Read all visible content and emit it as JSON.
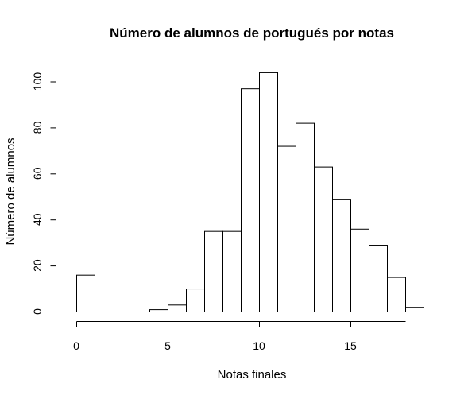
{
  "chart_data": {
    "type": "bar",
    "subtype": "histogram",
    "title": "Número de alumnos de portugués por notas",
    "xlabel": "Notas finales",
    "ylabel": "Número de alumnos",
    "bin_edges": [
      0,
      1,
      2,
      3,
      4,
      5,
      6,
      7,
      8,
      9,
      10,
      11,
      12,
      13,
      14,
      15,
      16,
      17,
      18,
      19
    ],
    "values": [
      16,
      0,
      0,
      0,
      1,
      3,
      10,
      35,
      35,
      97,
      104,
      72,
      82,
      63,
      49,
      36,
      29,
      15,
      2
    ],
    "xlim": [
      0,
      19
    ],
    "ylim": [
      0,
      104
    ],
    "x_axis_range": [
      0,
      18
    ],
    "y_axis_range": [
      0,
      100
    ],
    "xticks": [
      0,
      5,
      10,
      15
    ],
    "xtick_labels": [
      "0",
      "5",
      "10",
      "15"
    ],
    "yticks": [
      0,
      20,
      40,
      60,
      80,
      100
    ],
    "ytick_labels": [
      "0",
      "20",
      "40",
      "60",
      "80",
      "100"
    ],
    "grid": false,
    "legend": "none",
    "colors": {
      "bar_fill": "#ffffff",
      "bar_stroke": "#000000",
      "axis": "#000000",
      "background": "#ffffff"
    }
  }
}
